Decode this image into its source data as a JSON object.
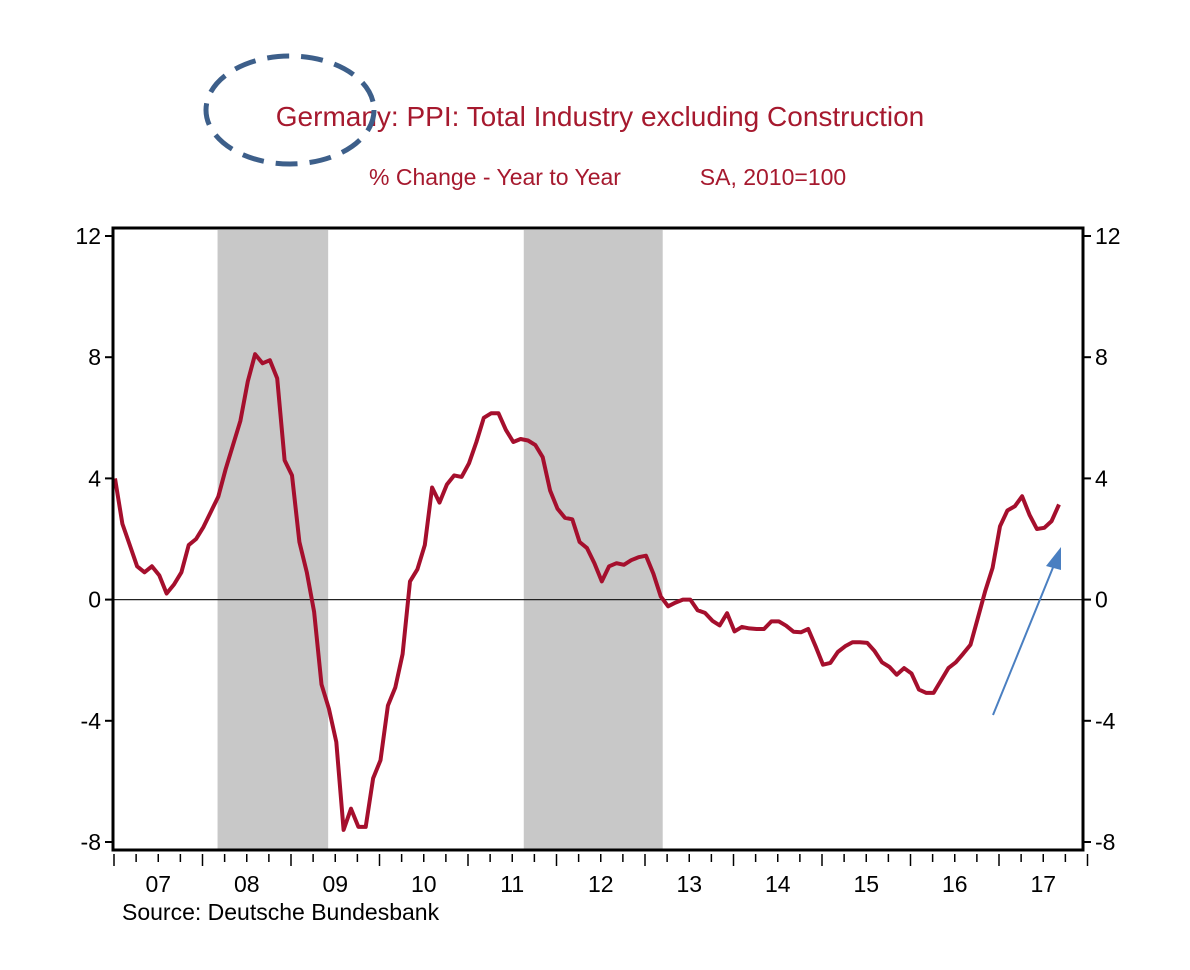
{
  "chart_data": {
    "type": "line",
    "title": "Germany: PPI: Total Industry excluding Construction",
    "subtitle_left": "% Change - Year to Year",
    "subtitle_right": "SA, 2010=100",
    "source": "Source:  Deutsche Bundesbank",
    "x_start": "2007-01",
    "frequency": "monthly",
    "x_ticklabels": [
      "07",
      "08",
      "09",
      "10",
      "11",
      "12",
      "13",
      "14",
      "15",
      "16",
      "17"
    ],
    "y_ticks": [
      12,
      8,
      4,
      0,
      -4,
      -8
    ],
    "y_ticklabels": [
      "12",
      "8",
      "4",
      "0",
      "-4",
      "-8"
    ],
    "ylim": [
      -8.2,
      12.2
    ],
    "x_range_years": [
      2007,
      2018
    ],
    "recession_bands": [
      {
        "start": 2008.17,
        "end": 2009.42
      },
      {
        "start": 2011.63,
        "end": 2013.2
      }
    ],
    "series": [
      {
        "name": "PPI % Change Y/Y",
        "color": "#a50f2d",
        "values": [
          4.0,
          2.5,
          1.8,
          1.1,
          0.9,
          1.1,
          0.8,
          0.2,
          0.5,
          0.9,
          1.8,
          2.0,
          2.4,
          2.9,
          3.4,
          4.3,
          5.1,
          5.9,
          7.2,
          8.1,
          7.8,
          7.9,
          7.3,
          4.6,
          4.1,
          1.9,
          0.9,
          -0.4,
          -2.8,
          -3.6,
          -4.7,
          -7.6,
          -6.9,
          -7.5,
          -7.5,
          -5.9,
          -5.3,
          -3.5,
          -2.9,
          -1.8,
          0.6,
          1.0,
          1.8,
          3.7,
          3.2,
          3.8,
          4.1,
          4.05,
          4.5,
          5.2,
          6.0,
          6.15,
          6.15,
          5.6,
          5.2,
          5.3,
          5.25,
          5.1,
          4.7,
          3.6,
          3.0,
          2.7,
          2.65,
          1.9,
          1.7,
          1.2,
          0.6,
          1.1,
          1.2,
          1.15,
          1.3,
          1.4,
          1.45,
          0.85,
          0.1,
          -0.22,
          -0.1,
          0.0,
          0.0,
          -0.35,
          -0.44,
          -0.7,
          -0.85,
          -0.45,
          -1.05,
          -0.9,
          -0.95,
          -0.97,
          -0.97,
          -0.72,
          -0.72,
          -0.86,
          -1.06,
          -1.08,
          -0.97,
          -1.54,
          -2.15,
          -2.09,
          -1.73,
          -1.54,
          -1.41,
          -1.41,
          -1.43,
          -1.7,
          -2.07,
          -2.22,
          -2.48,
          -2.26,
          -2.44,
          -2.97,
          -3.08,
          -3.08,
          -2.67,
          -2.26,
          -2.07,
          -1.79,
          -1.49,
          -0.6,
          0.28,
          1.05,
          2.42,
          2.94,
          3.08,
          3.41,
          2.8,
          2.33,
          2.37,
          2.59,
          3.14
        ]
      }
    ],
    "zero_line": true,
    "grid": false,
    "legend": "none"
  },
  "colors": {
    "line": "#a50f2d",
    "title": "#a6192e",
    "recession": "#c8c8c8",
    "annotation": "#4a7fc1",
    "ellipse": "#3d5f8a"
  }
}
